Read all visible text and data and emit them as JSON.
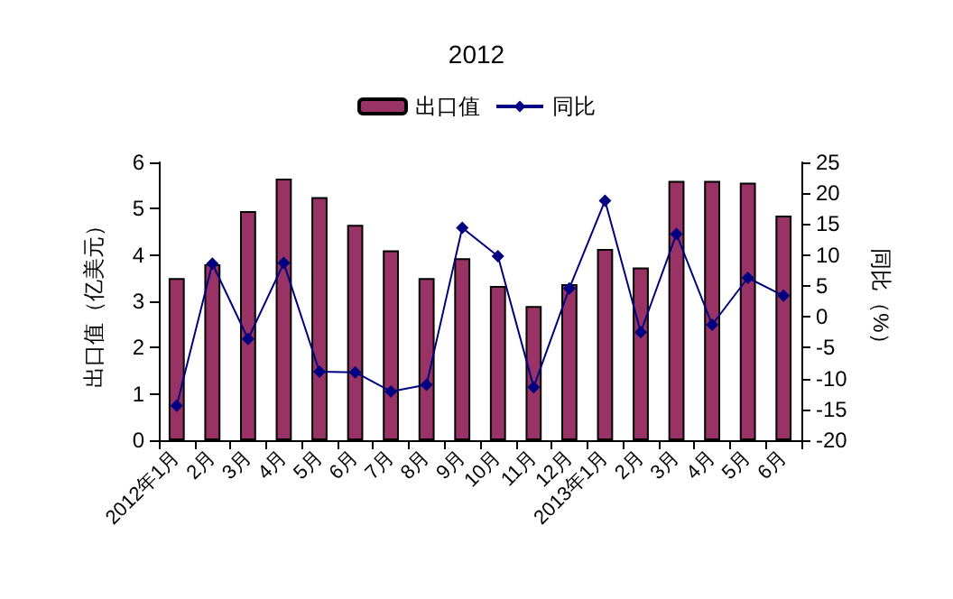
{
  "chart_data": {
    "type": "bar",
    "title": "2012",
    "categories": [
      "2012年1月",
      "2月",
      "3月",
      "4月",
      "5月",
      "6月",
      "7月",
      "8月",
      "9月",
      "10月",
      "11月",
      "12月",
      "2013年1月",
      "2月",
      "3月",
      "4月",
      "5月",
      "6月"
    ],
    "series": [
      {
        "name": "出口值",
        "color": "#993366",
        "values": [
          3.5,
          3.8,
          4.95,
          5.65,
          5.25,
          4.65,
          4.1,
          3.5,
          3.93,
          3.33,
          2.9,
          3.37,
          4.13,
          3.73,
          5.6,
          5.6,
          5.56,
          4.85
        ]
      },
      {
        "name": "同比",
        "type": "line",
        "axis": "y2",
        "color": "#000080",
        "marker": "diamond",
        "values": [
          -14.4,
          8.6,
          -3.6,
          8.7,
          -8.9,
          -9,
          -12.1,
          -11,
          14.4,
          9.8,
          -11.4,
          4.6,
          18.8,
          -2.5,
          13.4,
          -1.3,
          6.3,
          3.4
        ]
      }
    ],
    "ylabel": "出口值（亿美元）",
    "y2label": "同比（%）",
    "ylim": [
      0,
      6
    ],
    "yticks": [
      0,
      1,
      2,
      3,
      4,
      5,
      6
    ],
    "y2lim": [
      -20,
      25
    ],
    "y2ticks": [
      -20,
      -15,
      -10,
      -5,
      0,
      5,
      10,
      15,
      20,
      25
    ],
    "legend": "top",
    "grid": false
  }
}
